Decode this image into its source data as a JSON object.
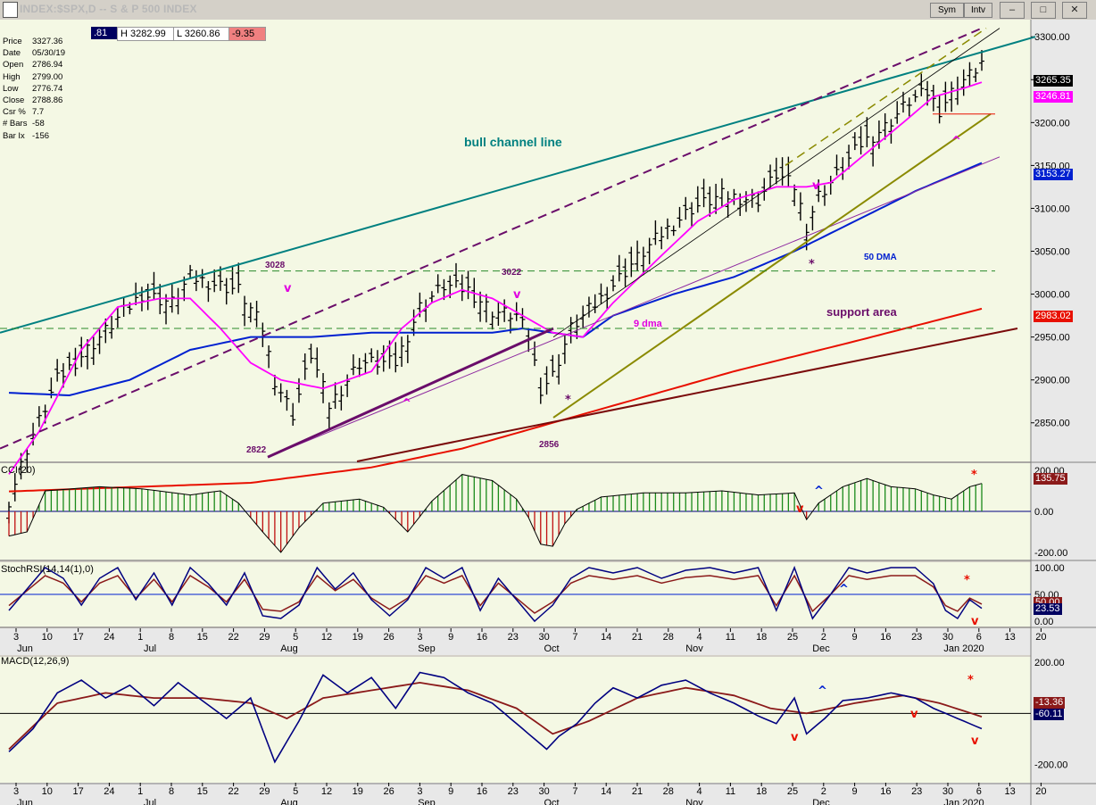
{
  "window": {
    "title": "INDEX:$SPX,D -- S & P 500 INDEX",
    "sym_label": "Sym",
    "intv_label": "Intv"
  },
  "quote_bar": {
    "open": ".81",
    "high": "H 3282.99",
    "low": "L 3260.86",
    "change": "-9.35"
  },
  "info_panel": [
    {
      "k": "Price",
      "v": "3327.36"
    },
    {
      "k": "Date",
      "v": "05/30/19"
    },
    {
      "k": "Open",
      "v": "2786.94"
    },
    {
      "k": "High",
      "v": "2799.00"
    },
    {
      "k": "Low",
      "v": "2776.74"
    },
    {
      "k": "Close",
      "v": "2788.86"
    },
    {
      "k": "Csr %",
      "v": "7.7"
    },
    {
      "k": "# Bars",
      "v": "-58"
    },
    {
      "k": "Bar Ix",
      "v": "-156"
    }
  ],
  "annotations": {
    "bull_channel": "bull channel line",
    "support_area": "support area",
    "dma9": "9 dma",
    "dma50": "50 DMA",
    "label_3028": "3028",
    "label_3022": "3022",
    "label_2822": "2822",
    "label_2856": "2856"
  },
  "value_labels": {
    "last": "3265.35",
    "ma9": "3246.81",
    "ma50": "3153.27",
    "ma200": "2983.02",
    "cci": "135.75",
    "stoch_a": "50.00",
    "stoch_b": "23.53",
    "macd_a": "-13.36",
    "macd_b": "-60.11"
  },
  "panels": {
    "cci_title": "CCI(20)",
    "stoch_title": "StochRSI(14,14(1),0)",
    "macd_title": "MACD(12,26,9)"
  },
  "colors": {
    "chart_bg": "#f4f8e4",
    "bars": "#000000",
    "ma9": "#ff00ff",
    "ma50": "#0020d0",
    "ma200": "#e81000",
    "channel": "#008080",
    "cci_up": "#1a8a1a",
    "cci_down": "#c01010"
  },
  "chart_data": {
    "type": "ohlc",
    "title": "INDEX:$SPX,D -- S & P 500 INDEX",
    "ylim": [
      2805,
      3320
    ],
    "y_ticks": [
      "3300.00",
      "3250.00",
      "3200.00",
      "3150.00",
      "3100.00",
      "3050.00",
      "3000.00",
      "2950.00",
      "2900.00",
      "2850.00"
    ],
    "y_tick_values": [
      3300,
      3250,
      3200,
      3150,
      3100,
      3050,
      3000,
      2950,
      2900,
      2850
    ],
    "x_day_labels": [
      "3",
      "10",
      "17",
      "24",
      "1",
      "8",
      "15",
      "22",
      "29",
      "5",
      "12",
      "19",
      "26",
      "3",
      "9",
      "16",
      "23",
      "30",
      "7",
      "14",
      "21",
      "28",
      "4",
      "11",
      "18",
      "25",
      "2",
      "9",
      "16",
      "23",
      "30",
      "6",
      "13",
      "20"
    ],
    "x_month_labels": [
      "Jun",
      "Jul",
      "Aug",
      "Sep",
      "Oct",
      "Nov",
      "Dec",
      "Jan 2020"
    ],
    "anchors_close": [
      [
        0,
        2760
      ],
      [
        3,
        2820
      ],
      [
        8,
        2900
      ],
      [
        15,
        2950
      ],
      [
        22,
        3000
      ],
      [
        27,
        2990
      ],
      [
        30,
        3020
      ],
      [
        35,
        3010
      ],
      [
        38,
        3005
      ],
      [
        42,
        2960
      ],
      [
        44,
        2900
      ],
      [
        47,
        2860
      ],
      [
        50,
        2930
      ],
      [
        53,
        2870
      ],
      [
        58,
        2920
      ],
      [
        61,
        2920
      ],
      [
        64,
        2920
      ],
      [
        68,
        2985
      ],
      [
        72,
        3010
      ],
      [
        76,
        3005
      ],
      [
        80,
        2980
      ],
      [
        84,
        2975
      ],
      [
        86,
        2950
      ],
      [
        88,
        2890
      ],
      [
        90,
        2905
      ],
      [
        93,
        2960
      ],
      [
        98,
        2995
      ],
      [
        103,
        3035
      ],
      [
        108,
        3070
      ],
      [
        113,
        3100
      ],
      [
        118,
        3115
      ],
      [
        124,
        3110
      ],
      [
        127,
        3140
      ],
      [
        130,
        3125
      ],
      [
        132,
        3080
      ],
      [
        134,
        3115
      ],
      [
        136,
        3130
      ],
      [
        141,
        3175
      ],
      [
        145,
        3195
      ],
      [
        149,
        3225
      ],
      [
        152,
        3235
      ],
      [
        154,
        3215
      ],
      [
        157,
        3245
      ],
      [
        159,
        3255
      ],
      [
        161,
        3270
      ]
    ],
    "ma9": [
      [
        0,
        2790
      ],
      [
        5,
        2840
      ],
      [
        12,
        2935
      ],
      [
        18,
        2985
      ],
      [
        25,
        2995
      ],
      [
        30,
        2995
      ],
      [
        35,
        2960
      ],
      [
        40,
        2920
      ],
      [
        45,
        2900
      ],
      [
        52,
        2890
      ],
      [
        60,
        2910
      ],
      [
        65,
        2960
      ],
      [
        70,
        2990
      ],
      [
        75,
        3005
      ],
      [
        80,
        2995
      ],
      [
        85,
        2975
      ],
      [
        90,
        2955
      ],
      [
        95,
        2950
      ],
      [
        100,
        2990
      ],
      [
        108,
        3045
      ],
      [
        114,
        3085
      ],
      [
        120,
        3110
      ],
      [
        127,
        3125
      ],
      [
        132,
        3125
      ],
      [
        136,
        3130
      ],
      [
        142,
        3165
      ],
      [
        148,
        3200
      ],
      [
        153,
        3230
      ],
      [
        158,
        3240
      ],
      [
        161,
        3247
      ]
    ],
    "ma50": [
      [
        0,
        2885
      ],
      [
        10,
        2882
      ],
      [
        20,
        2900
      ],
      [
        30,
        2935
      ],
      [
        40,
        2950
      ],
      [
        50,
        2950
      ],
      [
        60,
        2955
      ],
      [
        70,
        2955
      ],
      [
        80,
        2955
      ],
      [
        85,
        2960
      ],
      [
        90,
        2955
      ],
      [
        95,
        2950
      ],
      [
        100,
        2975
      ],
      [
        110,
        3000
      ],
      [
        120,
        3020
      ],
      [
        130,
        3050
      ],
      [
        140,
        3085
      ],
      [
        150,
        3120
      ],
      [
        161,
        3153
      ]
    ],
    "ma200": [
      [
        0,
        2770
      ],
      [
        40,
        2780
      ],
      [
        60,
        2798
      ],
      [
        75,
        2820
      ],
      [
        90,
        2850
      ],
      [
        100,
        2870
      ],
      [
        120,
        2910
      ],
      [
        140,
        2945
      ],
      [
        161,
        2983
      ]
    ],
    "cci": [
      [
        0,
        -120
      ],
      [
        3,
        -100
      ],
      [
        6,
        100
      ],
      [
        15,
        120
      ],
      [
        22,
        110
      ],
      [
        30,
        80
      ],
      [
        35,
        100
      ],
      [
        38,
        40
      ],
      [
        42,
        -100
      ],
      [
        45,
        -200
      ],
      [
        48,
        -80
      ],
      [
        52,
        40
      ],
      [
        58,
        60
      ],
      [
        62,
        20
      ],
      [
        66,
        -100
      ],
      [
        70,
        50
      ],
      [
        75,
        180
      ],
      [
        80,
        150
      ],
      [
        84,
        60
      ],
      [
        86,
        -30
      ],
      [
        88,
        -160
      ],
      [
        90,
        -170
      ],
      [
        92,
        -60
      ],
      [
        94,
        10
      ],
      [
        98,
        70
      ],
      [
        105,
        90
      ],
      [
        112,
        90
      ],
      [
        118,
        100
      ],
      [
        124,
        80
      ],
      [
        130,
        90
      ],
      [
        132,
        -40
      ],
      [
        134,
        40
      ],
      [
        138,
        120
      ],
      [
        142,
        160
      ],
      [
        146,
        120
      ],
      [
        150,
        110
      ],
      [
        153,
        80
      ],
      [
        156,
        60
      ],
      [
        159,
        120
      ],
      [
        161,
        136
      ]
    ],
    "stoch_rsi": [
      [
        0,
        20
      ],
      [
        3,
        60
      ],
      [
        6,
        100
      ],
      [
        9,
        80
      ],
      [
        12,
        30
      ],
      [
        15,
        80
      ],
      [
        18,
        100
      ],
      [
        21,
        40
      ],
      [
        24,
        90
      ],
      [
        27,
        30
      ],
      [
        30,
        100
      ],
      [
        33,
        70
      ],
      [
        36,
        30
      ],
      [
        39,
        90
      ],
      [
        42,
        10
      ],
      [
        45,
        5
      ],
      [
        48,
        30
      ],
      [
        51,
        100
      ],
      [
        54,
        60
      ],
      [
        57,
        90
      ],
      [
        60,
        40
      ],
      [
        63,
        10
      ],
      [
        66,
        40
      ],
      [
        69,
        100
      ],
      [
        72,
        80
      ],
      [
        75,
        100
      ],
      [
        78,
        20
      ],
      [
        81,
        80
      ],
      [
        84,
        40
      ],
      [
        87,
        0
      ],
      [
        90,
        30
      ],
      [
        93,
        80
      ],
      [
        96,
        100
      ],
      [
        100,
        90
      ],
      [
        104,
        100
      ],
      [
        108,
        80
      ],
      [
        112,
        95
      ],
      [
        116,
        100
      ],
      [
        120,
        90
      ],
      [
        124,
        100
      ],
      [
        127,
        20
      ],
      [
        130,
        100
      ],
      [
        133,
        5
      ],
      [
        136,
        50
      ],
      [
        139,
        100
      ],
      [
        142,
        90
      ],
      [
        146,
        100
      ],
      [
        150,
        100
      ],
      [
        153,
        70
      ],
      [
        155,
        20
      ],
      [
        157,
        5
      ],
      [
        159,
        40
      ],
      [
        161,
        24
      ]
    ],
    "macd": [
      [
        0,
        -150
      ],
      [
        4,
        -60
      ],
      [
        8,
        80
      ],
      [
        12,
        130
      ],
      [
        16,
        60
      ],
      [
        20,
        110
      ],
      [
        24,
        30
      ],
      [
        28,
        120
      ],
      [
        32,
        50
      ],
      [
        36,
        -20
      ],
      [
        40,
        60
      ],
      [
        44,
        -190
      ],
      [
        48,
        -30
      ],
      [
        52,
        150
      ],
      [
        56,
        80
      ],
      [
        60,
        140
      ],
      [
        64,
        20
      ],
      [
        68,
        160
      ],
      [
        72,
        140
      ],
      [
        76,
        80
      ],
      [
        80,
        40
      ],
      [
        84,
        -40
      ],
      [
        87,
        -100
      ],
      [
        89,
        -140
      ],
      [
        91,
        -90
      ],
      [
        94,
        -40
      ],
      [
        97,
        40
      ],
      [
        100,
        100
      ],
      [
        104,
        60
      ],
      [
        108,
        110
      ],
      [
        112,
        130
      ],
      [
        116,
        80
      ],
      [
        120,
        40
      ],
      [
        124,
        -10
      ],
      [
        127,
        -40
      ],
      [
        130,
        60
      ],
      [
        132,
        -80
      ],
      [
        135,
        -20
      ],
      [
        138,
        50
      ],
      [
        142,
        60
      ],
      [
        146,
        80
      ],
      [
        150,
        60
      ],
      [
        153,
        20
      ],
      [
        156,
        -10
      ],
      [
        159,
        -40
      ],
      [
        161,
        -60
      ]
    ],
    "macd_signal": [
      [
        0,
        -140
      ],
      [
        8,
        40
      ],
      [
        16,
        80
      ],
      [
        24,
        60
      ],
      [
        32,
        60
      ],
      [
        40,
        40
      ],
      [
        46,
        -20
      ],
      [
        52,
        60
      ],
      [
        60,
        90
      ],
      [
        68,
        120
      ],
      [
        76,
        90
      ],
      [
        84,
        20
      ],
      [
        90,
        -80
      ],
      [
        96,
        -30
      ],
      [
        104,
        60
      ],
      [
        112,
        100
      ],
      [
        120,
        70
      ],
      [
        126,
        20
      ],
      [
        132,
        0
      ],
      [
        140,
        40
      ],
      [
        148,
        70
      ],
      [
        154,
        40
      ],
      [
        161,
        -13
      ]
    ]
  }
}
